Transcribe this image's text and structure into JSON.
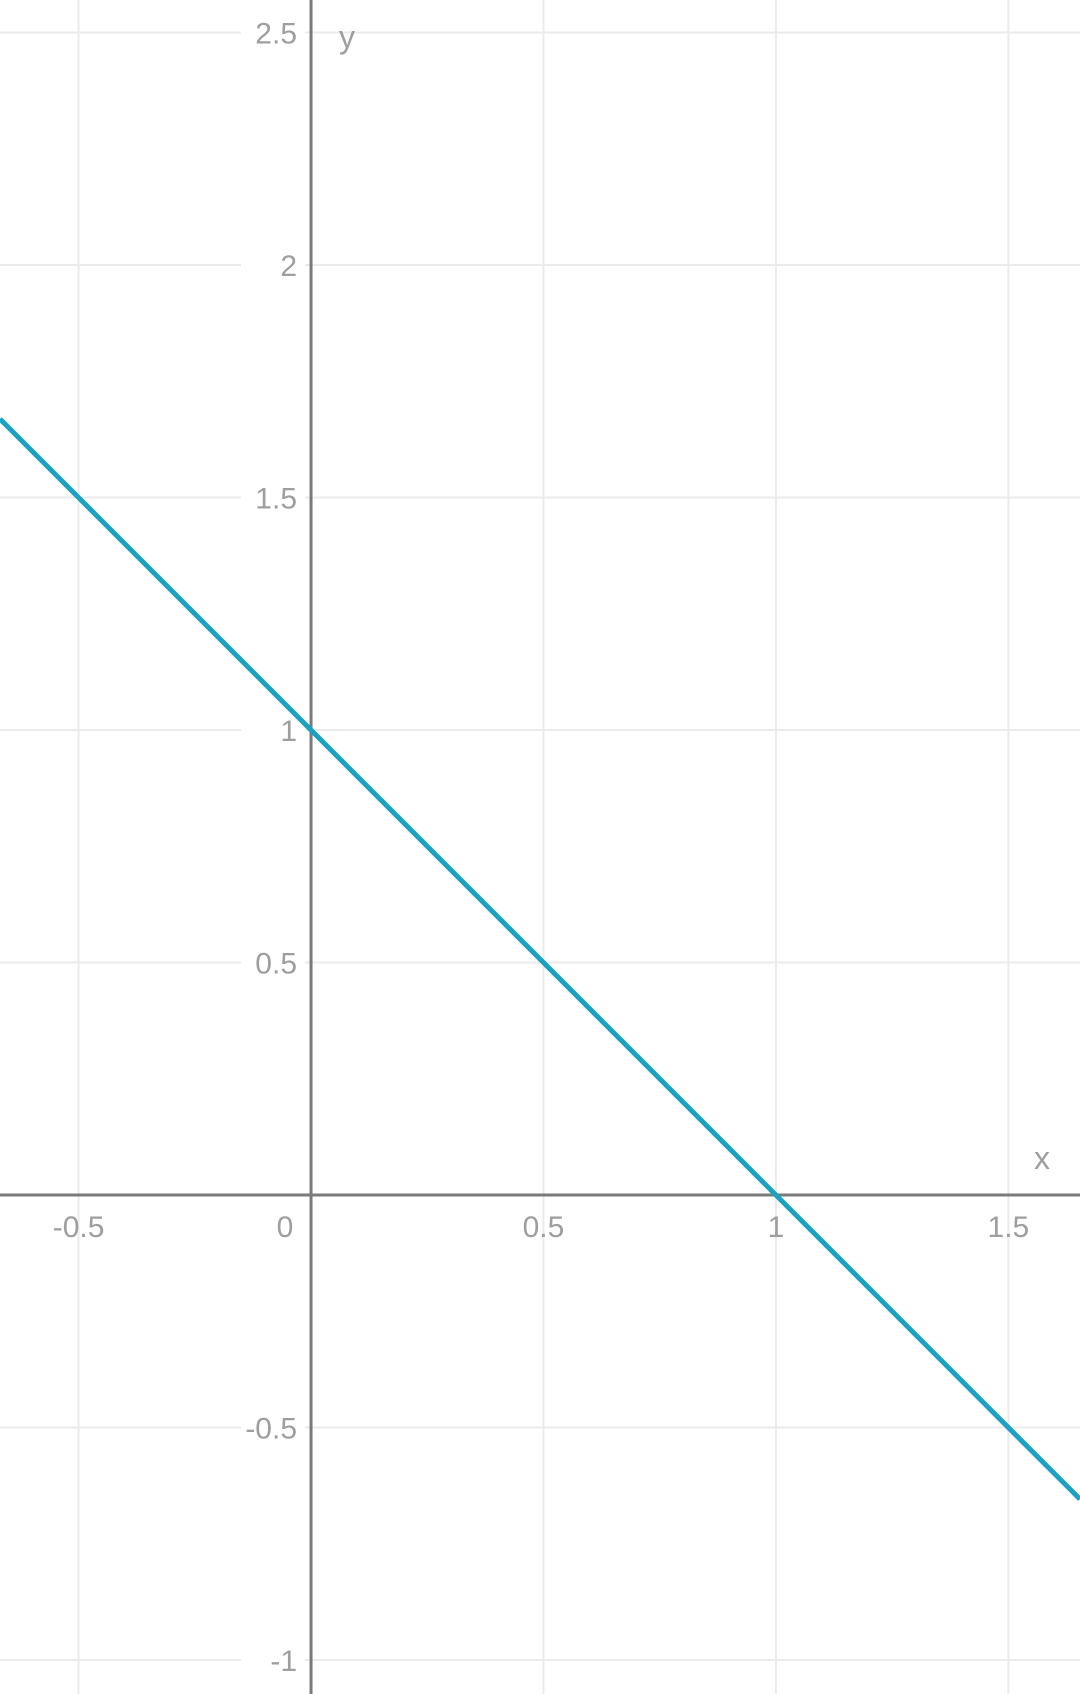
{
  "chart_data": {
    "type": "line",
    "title": "",
    "xlabel": "x",
    "ylabel": "y",
    "xlim": [
      -0.669,
      1.654
    ],
    "ylim": [
      -1.073,
      2.57
    ],
    "grid": true,
    "x_ticks": [
      -0.5,
      0,
      0.5,
      1,
      1.5
    ],
    "x_tick_labels": [
      "-0.5",
      "0",
      "0.5",
      "1",
      "1.5"
    ],
    "y_ticks": [
      -1,
      -0.5,
      0.5,
      1,
      1.5,
      2,
      2.5
    ],
    "y_tick_labels": [
      "-1",
      "-0.5",
      "0.5",
      "1",
      "1.5",
      "2",
      "2.5"
    ],
    "series": [
      {
        "x": [
          -0.669,
          1.654
        ],
        "y": [
          1.669,
          -0.654
        ],
        "color": "#1ba1c4"
      }
    ],
    "colors": {
      "line": "#1ba1c4",
      "grid": "#ebebeb",
      "axis": "#7a7a7a",
      "label": "#9e9e9e"
    }
  }
}
